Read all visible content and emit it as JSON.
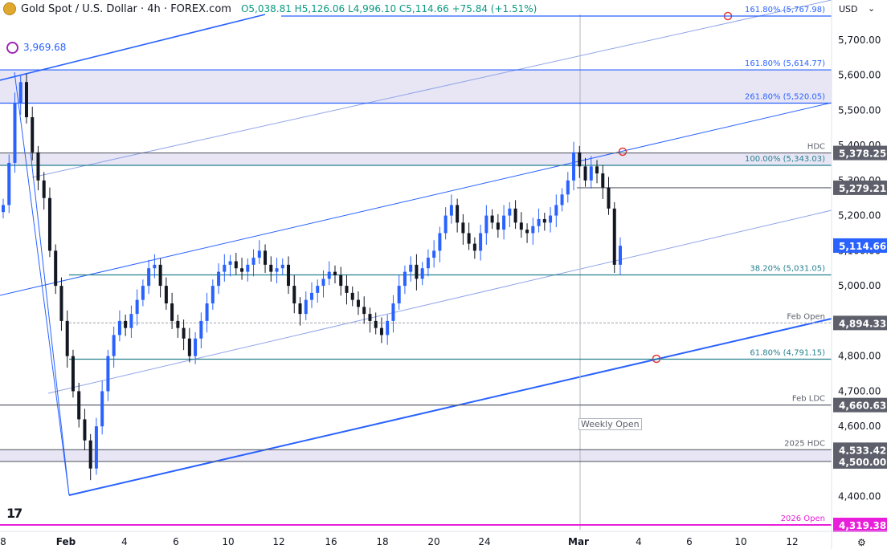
{
  "header": {
    "symbol_title": "Gold Spot / U.S. Dollar · 4h · FOREX.com",
    "open": "O5,038.81",
    "high": "H5,126.06",
    "low": "L4,996.10",
    "close": "C5,114.66",
    "change": "+75.84 (+1.51%)"
  },
  "currency_label": "USD",
  "icons": {
    "currency_dropdown": "chevron-down-icon",
    "settings": "gear-icon",
    "logo": "tradingview-logo-icon",
    "symbol": "gold-coin-icon"
  },
  "colors": {
    "up": "#2962ff",
    "down": "#131722",
    "fib_teal": "#26808f",
    "fib_blue": "#2962ff",
    "level_gray": "#5d606b",
    "zone_fill": "#e8e6f5",
    "open_2026": "#e91eda",
    "axis_text": "#131722"
  },
  "y_axis": {
    "ticks": [
      4400,
      4500,
      4600,
      4700,
      4800,
      4900,
      5000,
      5100,
      5200,
      5300,
      5400,
      5500,
      5600,
      5700
    ],
    "tick_labels": [
      "4,400.00",
      "4,500.00",
      "4,600.00",
      "4,700.00",
      "4,800.00",
      "4,900.00",
      "5,000.00",
      "5,100.00",
      "5,200.00",
      "5,300.00",
      "5,400.00",
      "5,500.00",
      "5,600.00",
      "5,700.00"
    ]
  },
  "x_axis": {
    "tick_labels": [
      "8",
      "Feb",
      "4",
      "6",
      "10",
      "12",
      "16",
      "18",
      "20",
      "24",
      "Mar",
      "4",
      "6",
      "10",
      "12"
    ]
  },
  "last_price": "5,114.66",
  "swing_low_marker": "3,969.68",
  "weekly_open_label": "Weekly Open",
  "chart_data": {
    "type": "candlestick",
    "title": "Gold Spot / U.S. Dollar · 4h · FOREX.com",
    "ylim": [
      4300,
      5800
    ],
    "levels": [
      {
        "label": "161.80% (5,767.98)",
        "value": 5767.98,
        "style": "fib"
      },
      {
        "label": "161.80% (5,614.77)",
        "value": 5614.77,
        "style": "fib"
      },
      {
        "label": "261.80% (5,520.05)",
        "value": 5520.05,
        "style": "fib"
      },
      {
        "label": "HDC",
        "value": 5378.25,
        "axis": "5,378.25",
        "style": "gray"
      },
      {
        "label": "100.00% (5,343.03)",
        "value": 5343.03,
        "style": "fib"
      },
      {
        "label": "",
        "value": 5279.21,
        "axis": "5,279.21",
        "style": "gray"
      },
      {
        "label": "38.20% (5,031.05)",
        "value": 5031.05,
        "style": "fib"
      },
      {
        "label": "Feb Open",
        "value": 4894.33,
        "axis": "4,894.33",
        "style": "dotted"
      },
      {
        "label": "61.80% (4,791.15)",
        "value": 4791.15,
        "style": "fib"
      },
      {
        "label": "Feb LDC",
        "value": 4660.63,
        "axis": "4,660.63",
        "style": "gray"
      },
      {
        "label": "2025 HDC",
        "value": 4533.42,
        "axis": "4,533.42",
        "style": "gray"
      },
      {
        "label": "",
        "value": 4500,
        "axis": "4,500.00",
        "style": "gray"
      },
      {
        "label": "2026 Open",
        "value": 4319.38,
        "axis": "4,319.38",
        "style": "magenta"
      }
    ],
    "zones": [
      {
        "from": 5520.05,
        "to": 5614.77
      },
      {
        "from": 5343.03,
        "to": 5378.25
      },
      {
        "from": 4500,
        "to": 4533.42
      }
    ],
    "closes": [
      5230,
      5350,
      5520,
      5580,
      5480,
      5380,
      5300,
      5250,
      5100,
      5000,
      4900,
      4800,
      4700,
      4620,
      4560,
      4480,
      4600,
      4700,
      4800,
      4860,
      4900,
      4880,
      4920,
      4960,
      5000,
      5050,
      5060,
      5000,
      4950,
      4900,
      4880,
      4850,
      4800,
      4850,
      4900,
      4950,
      5000,
      5040,
      5060,
      5070,
      5050,
      5040,
      5060,
      5080,
      5100,
      5060,
      5040,
      5050,
      5060,
      5000,
      4950,
      4920,
      4960,
      4980,
      5000,
      5020,
      5040,
      5030,
      5000,
      4980,
      4960,
      4940,
      4920,
      4900,
      4880,
      4860,
      4900,
      4950,
      5000,
      5040,
      5060,
      5020,
      5050,
      5080,
      5100,
      5150,
      5200,
      5230,
      5180,
      5150,
      5120,
      5100,
      5150,
      5200,
      5180,
      5160,
      5200,
      5220,
      5180,
      5160,
      5150,
      5170,
      5190,
      5180,
      5200,
      5230,
      5260,
      5300,
      5380,
      5340,
      5300,
      5340,
      5320,
      5280,
      5220,
      5060,
      5114
    ]
  }
}
